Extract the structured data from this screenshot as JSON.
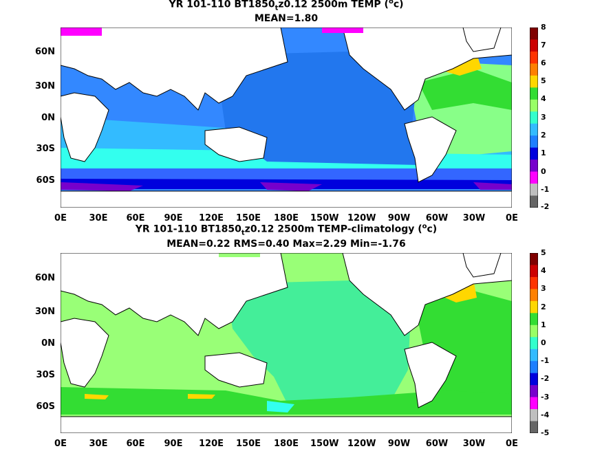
{
  "panels": [
    {
      "title_main": "YR 101-110 BT1850",
      "title_sub": "t",
      "title_rest": "z0.12 2500m TEMP (",
      "title_unit_sup": "o",
      "title_unit": "c)",
      "stats": "MEAN=1.80",
      "colorbar_labels": [
        "8",
        "7",
        "6",
        "5",
        "4",
        "3",
        "2",
        "1",
        "0",
        "-1",
        "-2"
      ],
      "colorbar_colors": [
        "#7f0000",
        "#cc0000",
        "#ff3300",
        "#ff8000",
        "#ffd700",
        "#33dd33",
        "#99ff66",
        "#33ffcc",
        "#33bbff",
        "#1e7fff",
        "#0000dd",
        "#7700cc",
        "#ff00ff",
        "#bfbfbf",
        "#666666"
      ]
    },
    {
      "title_main": "YR 101-110 BT1850",
      "title_sub": "t",
      "title_rest": "z0.12 2500m TEMP-climatology (",
      "title_unit_sup": "o",
      "title_unit": "c)",
      "stats": "MEAN=0.22   RMS=0.40   Max=2.29   Min=-1.76",
      "colorbar_labels": [
        "5",
        "4",
        "3",
        "2",
        "1",
        "0",
        "-1",
        "-2",
        "-3",
        "-4",
        "-5"
      ],
      "colorbar_colors": [
        "#7f0000",
        "#cc0000",
        "#ff3300",
        "#ff8000",
        "#ffd700",
        "#33dd33",
        "#99ff66",
        "#33ffcc",
        "#33bbff",
        "#1e7fff",
        "#0000dd",
        "#7700cc",
        "#ff00ff",
        "#bfbfbf",
        "#666666"
      ]
    }
  ],
  "lat_labels": [
    "60N",
    "30N",
    "0N",
    "30S",
    "60S"
  ],
  "lon_labels": [
    "0E",
    "30E",
    "60E",
    "90E",
    "120E",
    "150E",
    "180E",
    "150W",
    "120W",
    "90W",
    "60W",
    "30W",
    "0E"
  ]
}
